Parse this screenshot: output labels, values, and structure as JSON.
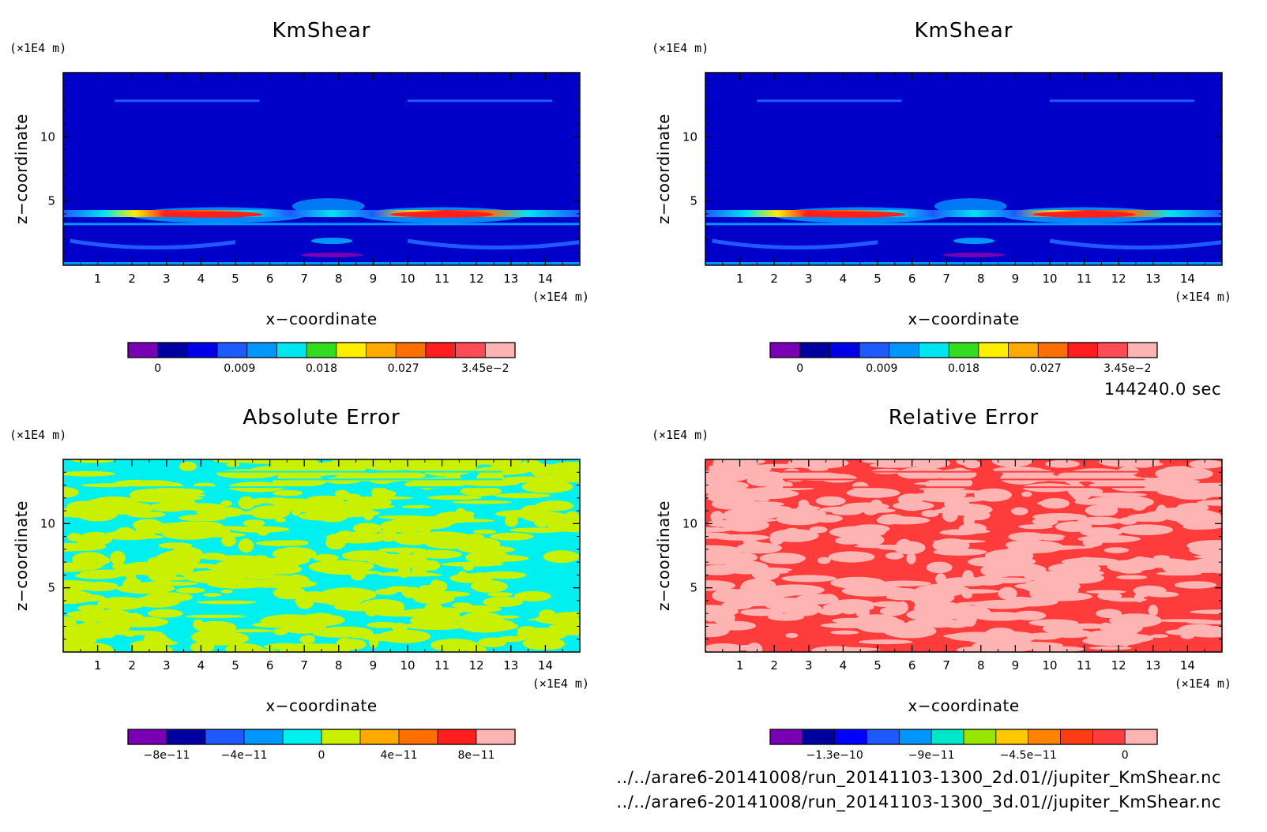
{
  "footer": {
    "time": "144240.0 sec",
    "path1": "../../arare6-20141008/run_20141103-1300_2d.01//jupiter_KmShear.nc",
    "path2": "../../arare6-20141008/run_20141103-1300_3d.01//jupiter_KmShear.nc"
  },
  "chart_data": [
    {
      "type": "heatmap",
      "field": "kmshear",
      "title": "KmShear",
      "xlabel": "x−coordinate",
      "ylabel": "z−coordinate",
      "x_unit": "(×1E4 m)",
      "y_unit": "(×1E4 m)",
      "xticks": [
        "1",
        "2",
        "3",
        "4",
        "5",
        "6",
        "7",
        "8",
        "9",
        "10",
        "11",
        "12",
        "13",
        "14"
      ],
      "yticks": [
        "5",
        "10"
      ],
      "xlim": [
        0,
        15
      ],
      "ylim": [
        0,
        15
      ],
      "colorbar": {
        "colors": [
          "#7a00b4",
          "#0000a0",
          "#0000e6",
          "#1e5aff",
          "#0096ff",
          "#00e6f0",
          "#32dc1e",
          "#ffee00",
          "#ffaa00",
          "#ff6e00",
          "#ff1e1e",
          "#ff4b55",
          "#ffb4b4"
        ],
        "labels": [
          "0",
          "0.009",
          "0.018",
          "0.027",
          "3.45e−2"
        ]
      }
    },
    {
      "type": "heatmap",
      "field": "kmshear",
      "title": "KmShear",
      "xlabel": "x−coordinate",
      "ylabel": "z−coordinate",
      "x_unit": "(×1E4 m)",
      "y_unit": "(×1E4 m)",
      "xticks": [
        "1",
        "2",
        "3",
        "4",
        "5",
        "6",
        "7",
        "8",
        "9",
        "10",
        "11",
        "12",
        "13",
        "14"
      ],
      "yticks": [
        "5",
        "10"
      ],
      "xlim": [
        0,
        15
      ],
      "ylim": [
        0,
        15
      ],
      "colorbar": {
        "colors": [
          "#7a00b4",
          "#0000a0",
          "#0000e6",
          "#1e5aff",
          "#0096ff",
          "#00e6f0",
          "#32dc1e",
          "#ffee00",
          "#ffaa00",
          "#ff6e00",
          "#ff1e1e",
          "#ff4b55",
          "#ffb4b4"
        ],
        "labels": [
          "0",
          "0.009",
          "0.018",
          "0.027",
          "3.45e−2"
        ]
      }
    },
    {
      "type": "heatmap",
      "field": "abs-error",
      "title": "Absolute Error",
      "xlabel": "x−coordinate",
      "ylabel": "z−coordinate",
      "x_unit": "(×1E4 m)",
      "y_unit": "(×1E4 m)",
      "xticks": [
        "1",
        "2",
        "3",
        "4",
        "5",
        "6",
        "7",
        "8",
        "9",
        "10",
        "11",
        "12",
        "13",
        "14"
      ],
      "yticks": [
        "5",
        "10"
      ],
      "xlim": [
        0,
        15
      ],
      "ylim": [
        0,
        15
      ],
      "palette": [
        "#00f0f0",
        "#c8f000"
      ],
      "colorbar": {
        "colors": [
          "#7a00b4",
          "#0000a0",
          "#1e5aff",
          "#0096ff",
          "#00f0f0",
          "#c8f000",
          "#ffaa00",
          "#ff6e00",
          "#ff1e1e",
          "#ffb4b4"
        ],
        "labels": [
          "−8e−11",
          "−4e−11",
          "0",
          "4e−11",
          "8e−11"
        ]
      }
    },
    {
      "type": "heatmap",
      "field": "rel-error",
      "title": "Relative Error",
      "xlabel": "x−coordinate",
      "ylabel": "z−coordinate",
      "x_unit": "(×1E4 m)",
      "y_unit": "(×1E4 m)",
      "xticks": [
        "1",
        "2",
        "3",
        "4",
        "5",
        "6",
        "7",
        "8",
        "9",
        "10",
        "11",
        "12",
        "13",
        "14"
      ],
      "yticks": [
        "5",
        "10"
      ],
      "xlim": [
        0,
        15
      ],
      "ylim": [
        0,
        15
      ],
      "palette": [
        "#ff3c3c",
        "#ffb4b4"
      ],
      "colorbar": {
        "colors": [
          "#7a00b4",
          "#0000a0",
          "#0000ff",
          "#1e5aff",
          "#0096ff",
          "#00e6c8",
          "#96e600",
          "#ffc800",
          "#ff8200",
          "#ff3c14",
          "#ff3c3c",
          "#ffb4b4"
        ],
        "labels": [
          "−1.3e−10",
          "−9e−11",
          "−4.5e−11",
          "0"
        ]
      }
    }
  ]
}
